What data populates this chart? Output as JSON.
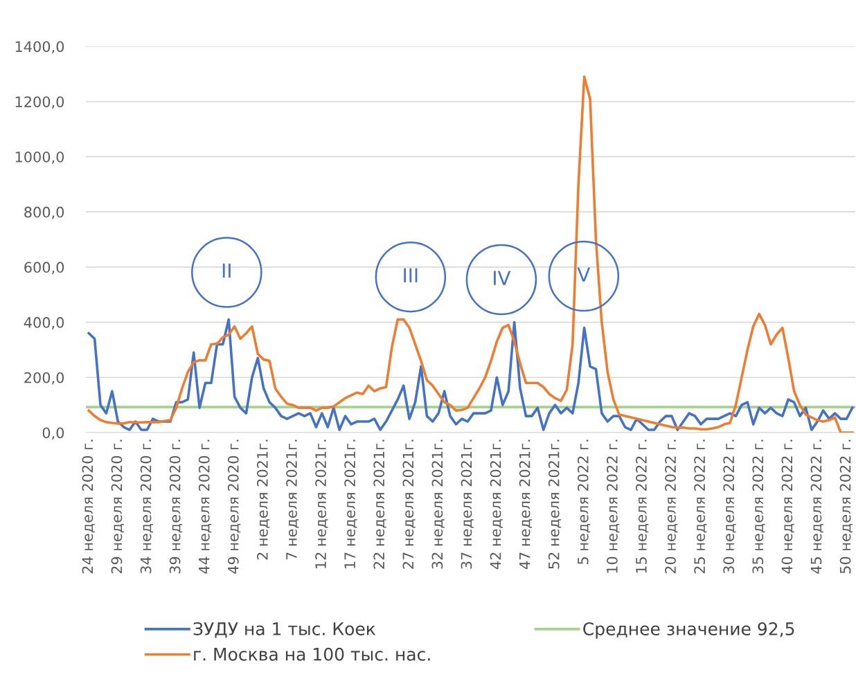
{
  "chart_data": {
    "type": "line",
    "categories": [
      "24 неделя 2020 г.",
      null,
      null,
      null,
      null,
      "29 неделя 2020 г.",
      null,
      null,
      null,
      null,
      "34 неделя 2020 г.",
      null,
      null,
      null,
      null,
      "39 неделя 2020 г.",
      null,
      null,
      null,
      null,
      "44 неделя 2020 г.",
      null,
      null,
      null,
      null,
      "49 неделя 2020 г.",
      null,
      null,
      null,
      null,
      "2 неделя 2021г.",
      null,
      null,
      null,
      null,
      "7 неделя 2021г.",
      null,
      null,
      null,
      null,
      "12 неделя 2021г.",
      null,
      null,
      null,
      null,
      "17 неделя 2021г.",
      null,
      null,
      null,
      null,
      "22 неделя 2021г.",
      null,
      null,
      null,
      null,
      "27 неделя 2021г.",
      null,
      null,
      null,
      null,
      "32 неделя 2021г.",
      null,
      null,
      null,
      null,
      "37 неделя 2021г.",
      null,
      null,
      null,
      null,
      "42 неделя 2021г.",
      null,
      null,
      null,
      null,
      "47 неделя 2021г.",
      null,
      null,
      null,
      null,
      "52 неделя 2021г.",
      null,
      null,
      null,
      null,
      "5 неделя 2022 г.",
      null,
      null,
      null,
      null,
      "10 неделя 2022 г.",
      null,
      null,
      null,
      null,
      "15 неделя 2022 г.",
      null,
      null,
      null,
      null,
      "20 неделя 2022 г.",
      null,
      null,
      null,
      null,
      "25 неделя 2022 г.",
      null,
      null,
      null,
      null,
      "30 неделя 2022 г.",
      null,
      null,
      null,
      null,
      "35 неделя 2022 г.",
      null,
      null,
      null,
      null,
      "40 неделя 2022 г.",
      null,
      null,
      null,
      null,
      "45 неделя 2022 г.",
      null,
      null,
      null,
      null,
      "50 неделя 2022 г.",
      null
    ],
    "series": [
      {
        "name": "ЗУДУ на 1 тыс. Коек",
        "color": "#4472c4",
        "values": [
          360,
          340,
          100,
          70,
          150,
          40,
          20,
          10,
          40,
          10,
          10,
          50,
          40,
          40,
          40,
          110,
          110,
          120,
          290,
          90,
          180,
          180,
          320,
          320,
          410,
          130,
          90,
          70,
          200,
          270,
          160,
          110,
          90,
          60,
          50,
          60,
          70,
          60,
          70,
          20,
          70,
          20,
          90,
          10,
          60,
          30,
          40,
          40,
          40,
          50,
          10,
          40,
          80,
          120,
          170,
          50,
          110,
          240,
          60,
          40,
          70,
          150,
          60,
          30,
          50,
          40,
          70,
          70,
          70,
          80,
          200,
          100,
          150,
          400,
          160,
          60,
          60,
          90,
          10,
          70,
          100,
          70,
          90,
          70,
          180,
          380,
          240,
          230,
          70,
          40,
          60,
          60,
          20,
          10,
          50,
          30,
          10,
          10,
          40,
          60,
          60,
          10,
          40,
          70,
          60,
          30,
          50,
          50,
          50,
          60,
          70,
          60,
          100,
          110,
          30,
          90,
          70,
          90,
          70,
          60,
          120,
          110,
          60,
          90,
          10,
          40,
          80,
          50,
          70,
          50,
          50,
          90
        ]
      },
      {
        "name": "г. Москва на 100 тыс. нас.",
        "color": "#ed7d31",
        "values": [
          80,
          60,
          45,
          38,
          35,
          33,
          33,
          38,
          37,
          37,
          38,
          38,
          38,
          42,
          45,
          90,
          160,
          220,
          255,
          262,
          262,
          320,
          322,
          345,
          355,
          385,
          340,
          360,
          385,
          285,
          265,
          260,
          160,
          130,
          105,
          100,
          90,
          90,
          90,
          80,
          90,
          90,
          95,
          110,
          125,
          135,
          145,
          140,
          170,
          150,
          160,
          165,
          310,
          410,
          410,
          380,
          320,
          260,
          190,
          170,
          140,
          110,
          100,
          80,
          82,
          90,
          125,
          160,
          200,
          260,
          330,
          380,
          390,
          330,
          250,
          180,
          180,
          180,
          165,
          140,
          125,
          115,
          155,
          320,
          900,
          1290,
          1210,
          700,
          400,
          220,
          120,
          65,
          60,
          55,
          50,
          45,
          40,
          35,
          30,
          25,
          20,
          18,
          18,
          15,
          15,
          12,
          12,
          15,
          20,
          30,
          35,
          100,
          200,
          300,
          385,
          430,
          390,
          320,
          355,
          380,
          270,
          150,
          100,
          65,
          55,
          45,
          40,
          45,
          55,
          0,
          0,
          0
        ]
      }
    ],
    "ref_lines": [
      {
        "axis": "y",
        "value": 92.5,
        "label": "Среднее значение 92,5",
        "color": "#a9d18e"
      }
    ],
    "annotations": [
      "II",
      "III",
      "IV",
      "V"
    ],
    "ylim": [
      0,
      1400
    ],
    "yticks": [
      {
        "value": 0,
        "label": "0,0"
      },
      {
        "value": 200,
        "label": "200,0"
      },
      {
        "value": 400,
        "label": "400,0"
      },
      {
        "value": 600,
        "label": "600,0"
      },
      {
        "value": 800,
        "label": "800,0"
      },
      {
        "value": 1000,
        "label": "1000,0"
      },
      {
        "value": 1200,
        "label": "1200,0"
      },
      {
        "value": 1400,
        "label": "1400,0"
      }
    ],
    "grid": "y",
    "legend": "bottom",
    "marker": "none",
    "line_style": "solid"
  }
}
